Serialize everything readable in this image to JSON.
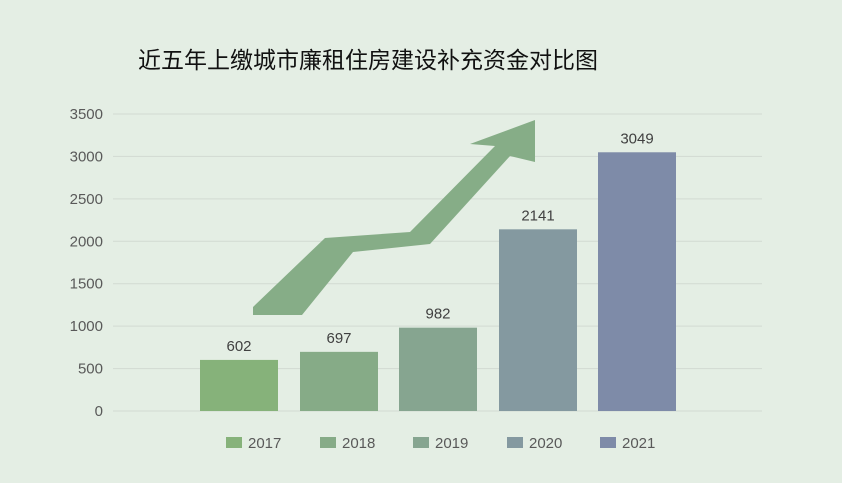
{
  "chart_data": {
    "type": "bar",
    "title": "近五年上缴城市廉租住房建设补充资金对比图",
    "xlabel": "",
    "ylabel": "",
    "ylim": [
      0,
      3500
    ],
    "yticks": [
      0,
      500,
      1000,
      1500,
      2000,
      2500,
      3000,
      3500
    ],
    "grid": true,
    "legend_position": "bottom",
    "categories": [
      "2017",
      "2018",
      "2019",
      "2020",
      "2021"
    ],
    "values": [
      602,
      697,
      982,
      2141,
      3049
    ],
    "data_labels": [
      "602",
      "697",
      "982",
      "2141",
      "3049"
    ],
    "colors": [
      "#86b27a",
      "#86ab87",
      "#86a590",
      "#8499a0",
      "#7e8ba8"
    ],
    "annotations": [
      {
        "type": "arrow",
        "description": "upward trend arrow",
        "color": "#86ad87"
      }
    ]
  }
}
